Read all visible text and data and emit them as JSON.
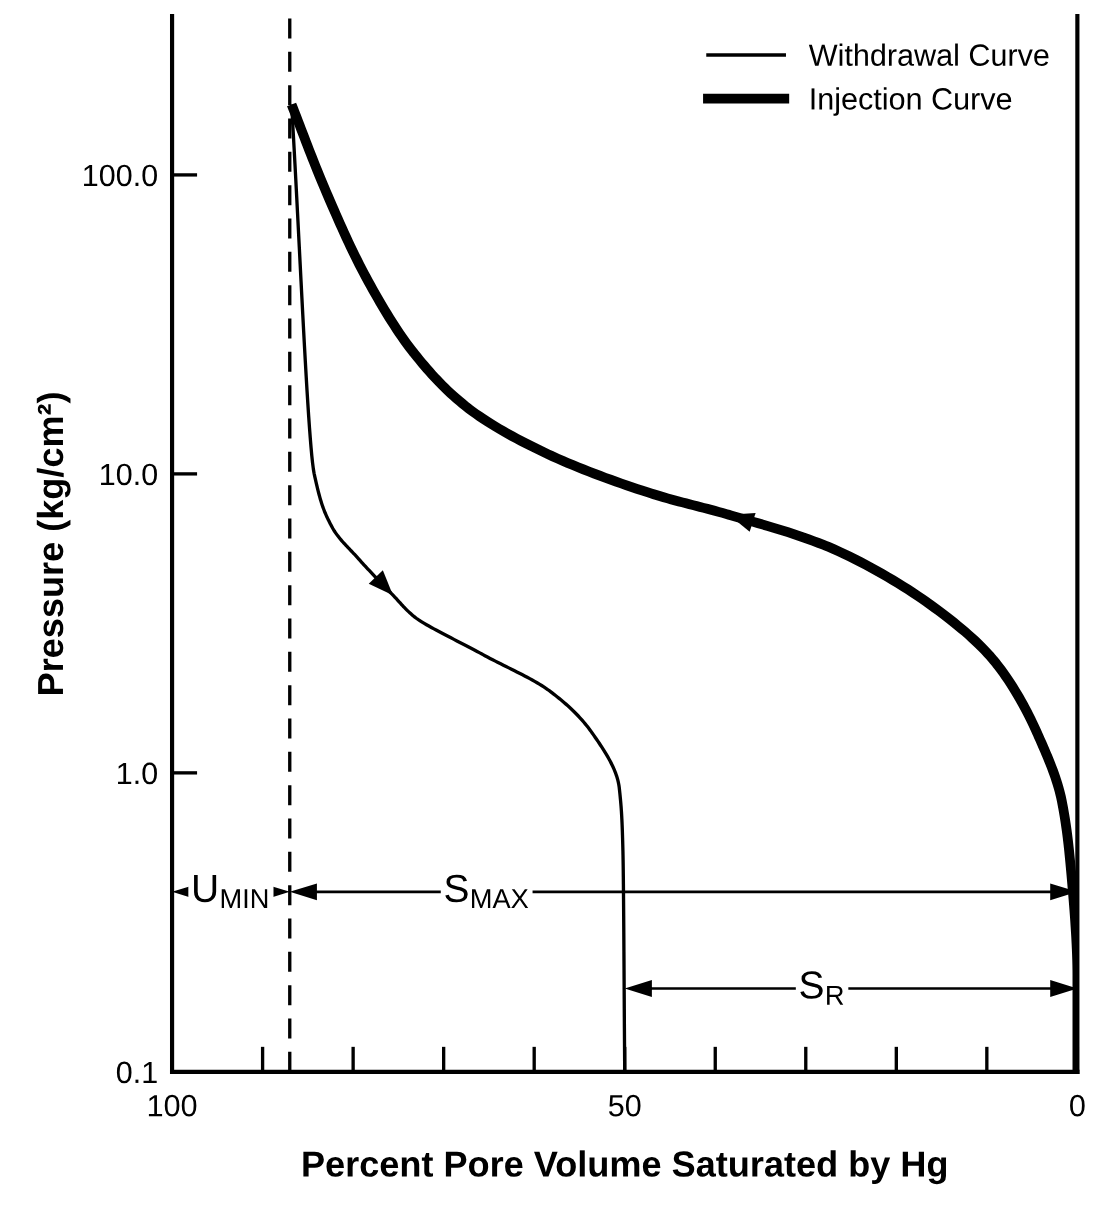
{
  "chart_data": {
    "type": "line",
    "xlabel": "Percent Pore Volume Saturated by Hg",
    "ylabel": "Pressure (kg/cm²)",
    "series": [
      {
        "name": "Withdrawal Curve",
        "color": "#000000",
        "x": [
          86.8,
          84.3,
          82.4,
          79.4,
          75.6,
          73.3,
          65.7,
          58.2,
          53.6,
          50.6,
          50.2,
          50
        ],
        "values": [
          172,
          10,
          6.7,
          5.2,
          3.93,
          3.34,
          2.49,
          1.87,
          1.36,
          0.89,
          0.55,
          0.1
        ]
      },
      {
        "name": "Injection Curve",
        "color": "#000000",
        "x": [
          0,
          0,
          0.7,
          1.7,
          4.4,
          8.9,
          16.5,
          27.8,
          38.5,
          46.8,
          58.1,
          67.3,
          73.3,
          78.6,
          83.2,
          86.8
        ],
        "values": [
          0.1,
          0.21,
          0.47,
          0.8,
          1.35,
          2.31,
          3.7,
          5.75,
          7.3,
          8.55,
          11.5,
          16.6,
          25.4,
          45.6,
          91,
          172
        ]
      }
    ],
    "xlim": [
      100,
      0
    ],
    "xticks": [
      100,
      {
        "value": 90,
        "label": null
      },
      {
        "value": 80,
        "label": null
      },
      {
        "value": 70,
        "label": null
      },
      {
        "value": 60,
        "label": null
      },
      50,
      {
        "value": 40,
        "label": null
      },
      {
        "value": 30,
        "label": null
      },
      {
        "value": 20,
        "label": null
      },
      {
        "value": 10,
        "label": null
      },
      0
    ],
    "ylim": [
      0.1,
      340
    ],
    "yticks": [
      0.1,
      {
        "value": 1,
        "label": "1.0"
      },
      {
        "value": 10,
        "label": "10.0"
      },
      {
        "value": 100,
        "label": "100.0"
      }
    ],
    "log": "y",
    "ref_lines": [
      {
        "axis": "x",
        "value": 87,
        "line_style": "dashed",
        "color": "#000000"
      }
    ],
    "annotations": [
      {
        "text": "U$_{MIN}$",
        "x": 93.5,
        "y": 0.4
      },
      "S$_{MAX}$",
      {
        "text": "S$_{R}$",
        "x": 28.2,
        "y": 0.19
      }
    ],
    "legend": "top right",
    "grid": false,
    "marker": "none",
    "line_style": "solid"
  }
}
